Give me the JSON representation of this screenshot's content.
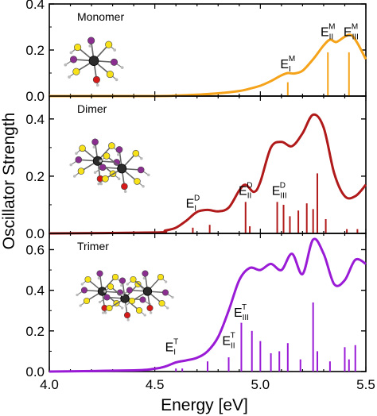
{
  "chart_data": {
    "type": "line",
    "xlabel": "Energy [eV]",
    "ylabel": "Oscillator Strength",
    "xlim": [
      4.0,
      5.5
    ],
    "x_ticks": [
      "4.0",
      "4.5",
      "5.0",
      "5.5"
    ],
    "colors": {
      "Monomer": "#f5a31a",
      "Dimer": "#b01a1a",
      "Trimer": "#9a1bd6"
    },
    "panels": [
      {
        "name": "Monomer",
        "ylim": [
          0,
          0.4
        ],
        "y_ticks": [
          "0.0",
          "0.2",
          "0.4"
        ],
        "inset_icon": "molecule-structure-icon",
        "spectrum": {
          "x": [
            4.0,
            4.5,
            4.6,
            4.7,
            4.8,
            4.9,
            4.95,
            5.0,
            5.05,
            5.1,
            5.13,
            5.16,
            5.2,
            5.25,
            5.3,
            5.33,
            5.36,
            5.4,
            5.43,
            5.46,
            5.5
          ],
          "y": [
            0.0,
            0.0,
            0.002,
            0.006,
            0.012,
            0.022,
            0.032,
            0.045,
            0.065,
            0.09,
            0.1,
            0.098,
            0.11,
            0.16,
            0.22,
            0.245,
            0.235,
            0.258,
            0.265,
            0.23,
            0.16
          ]
        },
        "sticks": {
          "x": [
            5.13,
            5.32,
            5.42
          ],
          "y": [
            0.06,
            0.19,
            0.19
          ]
        },
        "annotations": [
          {
            "main": "E",
            "sub": "I",
            "sup": "M",
            "x": 5.13,
            "y": 0.12
          },
          {
            "main": "E",
            "sub": "II",
            "sup": "M",
            "x": 5.32,
            "y": 0.26
          },
          {
            "main": "E",
            "sub": "III",
            "sup": "M",
            "x": 5.43,
            "y": 0.26
          }
        ]
      },
      {
        "name": "Dimer",
        "ylim": [
          0,
          0.48
        ],
        "y_ticks": [
          "0.0",
          "0.2",
          "0.4"
        ],
        "inset_icon": "molecule-structure-icon",
        "spectrum": {
          "x": [
            4.0,
            4.5,
            4.55,
            4.6,
            4.65,
            4.7,
            4.75,
            4.8,
            4.85,
            4.9,
            4.93,
            4.97,
            5.0,
            5.05,
            5.1,
            5.15,
            5.2,
            5.25,
            5.3,
            5.35,
            5.4,
            5.45,
            5.5
          ],
          "y": [
            0.0,
            0.003,
            0.01,
            0.02,
            0.045,
            0.075,
            0.082,
            0.077,
            0.09,
            0.15,
            0.17,
            0.145,
            0.18,
            0.3,
            0.32,
            0.305,
            0.35,
            0.415,
            0.37,
            0.21,
            0.13,
            0.13,
            0.17
          ]
        },
        "sticks": {
          "x": [
            4.68,
            4.76,
            4.93,
            4.95,
            5.08,
            5.11,
            5.14,
            5.18,
            5.22,
            5.25,
            5.27,
            5.31,
            5.41,
            5.46
          ],
          "y": [
            0.02,
            0.03,
            0.11,
            0.025,
            0.11,
            0.1,
            0.06,
            0.08,
            0.105,
            0.085,
            0.21,
            0.05,
            0.015,
            0.015
          ]
        },
        "annotations": [
          {
            "main": "E",
            "sub": "I",
            "sup": "D",
            "x": 4.68,
            "y": 0.09
          },
          {
            "main": "E",
            "sub": "II",
            "sup": "D",
            "x": 4.93,
            "y": 0.135
          },
          {
            "main": "E",
            "sub": "III",
            "sup": "D",
            "x": 5.09,
            "y": 0.135
          }
        ]
      },
      {
        "name": "Trimer",
        "ylim": [
          0,
          0.68
        ],
        "y_ticks": [
          "0.0",
          "0.2",
          "0.4",
          "0.6"
        ],
        "inset_icon": "molecule-structure-icon",
        "spectrum": {
          "x": [
            4.0,
            4.4,
            4.5,
            4.55,
            4.6,
            4.65,
            4.7,
            4.75,
            4.8,
            4.85,
            4.9,
            4.95,
            5.0,
            5.05,
            5.1,
            5.15,
            5.2,
            5.25,
            5.3,
            5.35,
            5.4,
            5.45,
            5.5
          ],
          "y": [
            0.0,
            0.006,
            0.014,
            0.025,
            0.045,
            0.055,
            0.068,
            0.1,
            0.17,
            0.3,
            0.45,
            0.51,
            0.5,
            0.53,
            0.5,
            0.58,
            0.48,
            0.65,
            0.58,
            0.43,
            0.45,
            0.55,
            0.53
          ]
        },
        "sticks": {
          "x": [
            4.6,
            4.63,
            4.75,
            4.85,
            4.91,
            4.96,
            5.0,
            5.05,
            5.09,
            5.13,
            5.19,
            5.25,
            5.27,
            5.33,
            5.4,
            5.42,
            5.45
          ],
          "y": [
            0.015,
            0.015,
            0.05,
            0.07,
            0.24,
            0.2,
            0.15,
            0.09,
            0.1,
            0.14,
            0.06,
            0.34,
            0.1,
            0.05,
            0.12,
            0.06,
            0.13
          ]
        },
        "annotations": [
          {
            "main": "E",
            "sub": "I",
            "sup": "T",
            "x": 4.58,
            "y": 0.1
          },
          {
            "main": "E",
            "sub": "II",
            "sup": "T",
            "x": 4.85,
            "y": 0.13
          },
          {
            "main": "E",
            "sub": "III",
            "sup": "T",
            "x": 4.91,
            "y": 0.27
          }
        ]
      }
    ]
  }
}
